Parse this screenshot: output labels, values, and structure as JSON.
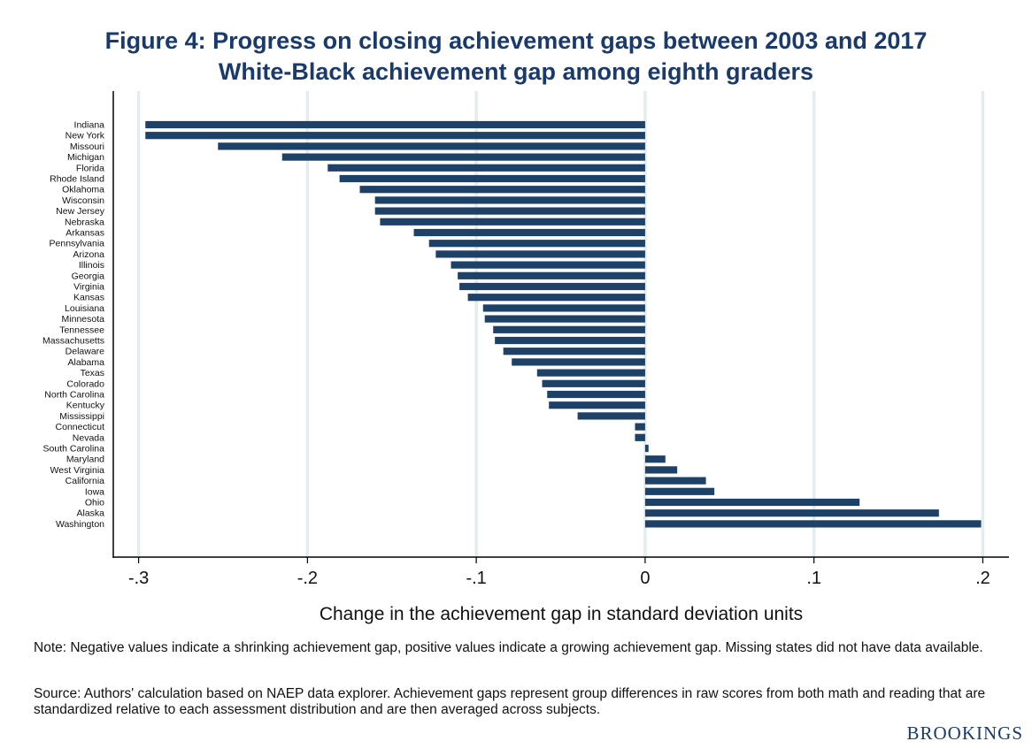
{
  "title_line1": "Figure 4: Progress on closing achievement gaps between 2003 and 2017",
  "title_line2": "White-Black achievement gap among eighth graders",
  "chart_data": {
    "type": "bar",
    "orientation": "horizontal",
    "xlabel": "Change in the achievement gap in standard deviation units",
    "xlim": [
      -0.315,
      0.2155
    ],
    "xticks": [
      -0.3,
      -0.2,
      -0.1,
      0,
      0.1,
      0.2
    ],
    "xtick_labels": [
      "-.3",
      "-.2",
      "-.1",
      "0",
      ".1",
      ".2"
    ],
    "grid": "vertical",
    "bar_color": "#1d4167",
    "categories": [
      "Indiana",
      "New York",
      "Missouri",
      "Michigan",
      "Florida",
      "Rhode Island",
      "Oklahoma",
      "Wisconsin",
      "New Jersey",
      "Nebraska",
      "Arkansas",
      "Pennsylvania",
      "Arizona",
      "Illinois",
      "Georgia",
      "Virginia",
      "Kansas",
      "Louisiana",
      "Minnesota",
      "Tennessee",
      "Massachusetts",
      "Delaware",
      "Alabama",
      "Texas",
      "Colorado",
      "North Carolina",
      "Kentucky",
      "Mississippi",
      "Connecticut",
      "Nevada",
      "South Carolina",
      "Maryland",
      "West Virginia",
      "California",
      "Iowa",
      "Ohio",
      "Alaska",
      "Washington"
    ],
    "values": [
      -0.296,
      -0.296,
      -0.253,
      -0.215,
      -0.188,
      -0.181,
      -0.169,
      -0.16,
      -0.16,
      -0.157,
      -0.137,
      -0.128,
      -0.124,
      -0.115,
      -0.111,
      -0.11,
      -0.105,
      -0.096,
      -0.095,
      -0.09,
      -0.089,
      -0.084,
      -0.079,
      -0.064,
      -0.061,
      -0.058,
      -0.057,
      -0.04,
      -0.006,
      -0.006,
      0.002,
      0.012,
      0.019,
      0.036,
      0.041,
      0.127,
      0.174,
      0.199
    ]
  },
  "note": "Note: Negative values indicate a shrinking achievement gap, positive values indicate a growing achievement gap. Missing states did not have data available.",
  "source": "Source: Authors' calculation based on NAEP data explorer. Achievement gaps represent group differences in raw scores from both math and reading that are standardized relative to each assessment distribution and are then averaged across subjects.",
  "brand": "BROOKINGS"
}
